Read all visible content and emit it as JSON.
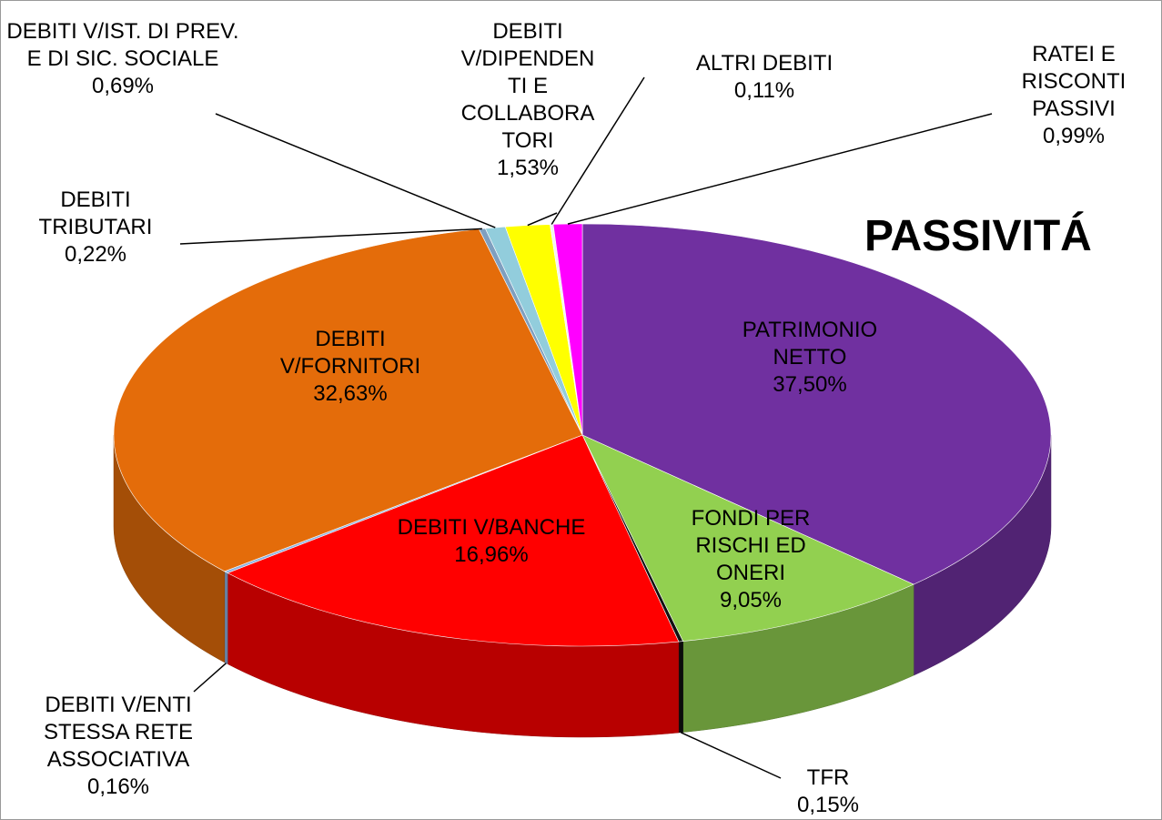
{
  "chart_data": {
    "type": "pie",
    "title": "PASSIVITÁ",
    "categories": [
      "PATRIMONIO NETTO",
      "FONDI PER RISCHI ED ONERI",
      "TFR",
      "DEBITI V/BANCHE",
      "DEBITI V/ENTI STESSA RETE ASSOCIATIVA",
      "DEBITI V/FORNITORI",
      "DEBITI TRIBUTARI",
      "DEBITI V/IST. DI PREV. E DI SIC. SOCIALE",
      "DEBITI V/DIPENDENTI E COLLABORATORI",
      "ALTRI DEBITI",
      "RATEI E RISCONTI PASSIVI"
    ],
    "values": [
      37.5,
      9.05,
      0.15,
      16.96,
      0.16,
      32.63,
      0.22,
      0.69,
      1.53,
      0.11,
      0.99
    ],
    "value_labels": [
      "37,50%",
      "9,05%",
      "0,15%",
      "16,96%",
      "0,16%",
      "32,63%",
      "0,22%",
      "0,69%",
      "1,53%",
      "0,11%",
      "0,99%"
    ],
    "colors": [
      "#7030a0",
      "#92d050",
      "#111111",
      "#ff0000",
      "#8db3e2",
      "#e46c0a",
      "#7f9fbf",
      "#92cddc",
      "#ffff00",
      "#f2f2f2",
      "#ff00ff"
    ]
  }
}
